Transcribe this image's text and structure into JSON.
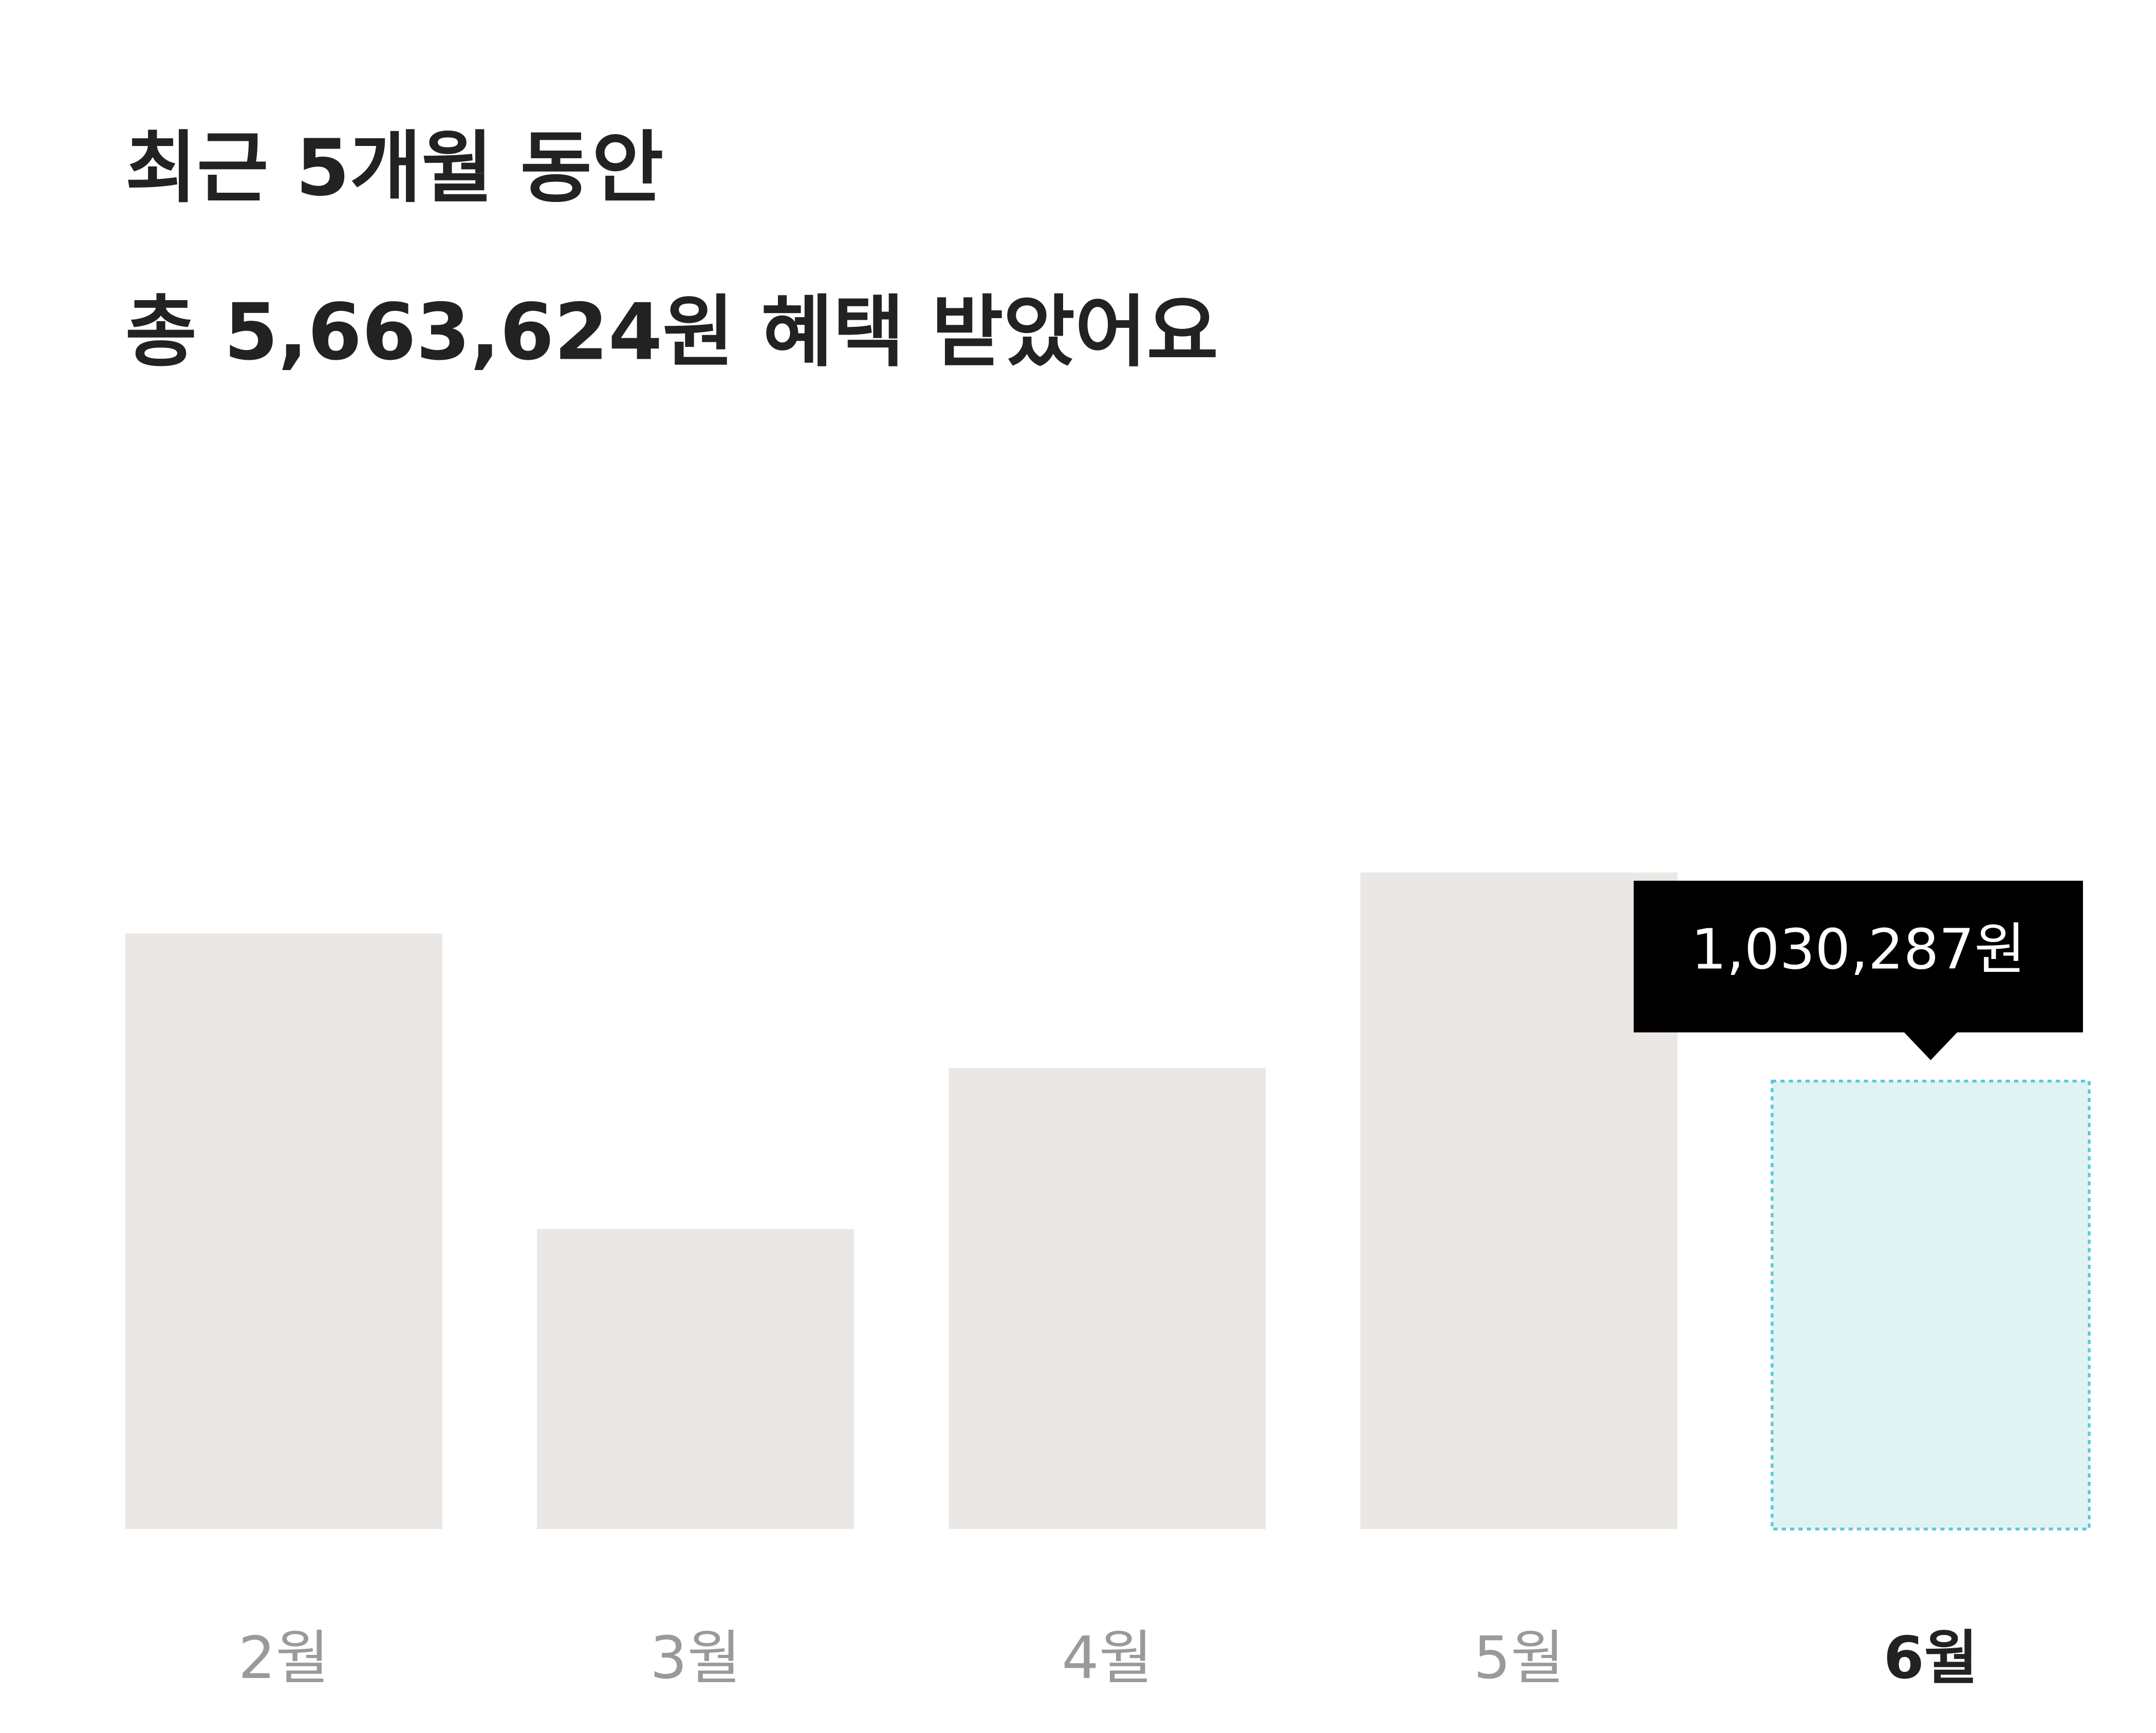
{
  "chart_data": {
    "type": "bar",
    "title": "최근 5개월 동안",
    "subtitle": "총 5,663,624원 혜택 받았어요",
    "categories": [
      "2월",
      "3월",
      "4월",
      "5월",
      "6월"
    ],
    "values": [
      1370000,
      690000,
      1060000,
      1510000,
      1030287
    ],
    "value_labels": [
      null,
      null,
      null,
      null,
      "1,030,287원"
    ],
    "color": "#ebe7e4",
    "highlight_index": 4,
    "highlight_color": "#e0f3f3",
    "highlight_border_color": "#5bc8d8",
    "label_color": "#9a9a9a",
    "highlight_label_color": "#222222",
    "ylim": [
      0,
      1600000
    ]
  }
}
